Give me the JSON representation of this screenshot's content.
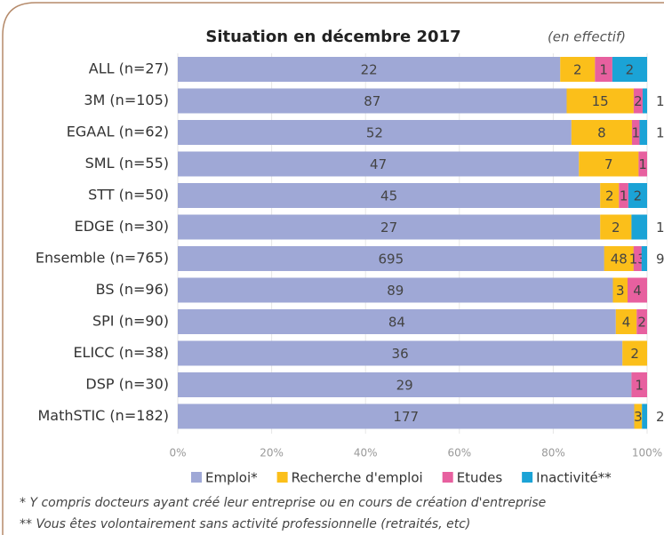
{
  "chart_data": {
    "type": "bar",
    "orientation": "horizontal",
    "stacked": "percent",
    "title": "Situation en décembre 2017",
    "subtitle": "(en effectif)",
    "categories": [
      "ALL (n=27)",
      "3M (n=105)",
      "EGAAL (n=62)",
      "SML (n=55)",
      "STT (n=50)",
      "EDGE (n=30)",
      "Ensemble (n=765)",
      "BS (n=96)",
      "SPI (n=90)",
      "ELICC (n=38)",
      "DSP (n=30)",
      "MathSTIC (n=182)"
    ],
    "series": [
      {
        "name": "Emploi*",
        "color": "#9fa8d6",
        "values": [
          22,
          87,
          52,
          47,
          45,
          27,
          695,
          89,
          84,
          36,
          29,
          177
        ]
      },
      {
        "name": "Recherche d'emploi",
        "color": "#fbbf1a",
        "values": [
          2,
          15,
          8,
          7,
          2,
          2,
          48,
          3,
          4,
          2,
          null,
          3
        ]
      },
      {
        "name": "Etudes",
        "color": "#e7609f",
        "values": [
          1,
          2,
          1,
          1,
          1,
          null,
          13,
          4,
          2,
          null,
          1,
          null
        ]
      },
      {
        "name": "Inactivité**",
        "color": "#1ba3d6",
        "values": [
          2,
          1,
          1,
          null,
          2,
          1,
          9,
          null,
          null,
          null,
          null,
          2
        ]
      }
    ],
    "xlim": [
      0,
      100
    ],
    "xticks": [
      {
        "value": 0,
        "label": "0%"
      },
      {
        "value": 20,
        "label": "20%"
      },
      {
        "value": 40,
        "label": "40%"
      },
      {
        "value": 60,
        "label": "60%"
      },
      {
        "value": 80,
        "label": "80%"
      },
      {
        "value": 100,
        "label": "100%"
      }
    ],
    "grid": true,
    "legend": "bottom",
    "notes": [
      "* Y compris docteurs ayant créé leur entreprise ou en cours de création d'entreprise",
      "** Vous êtes volontairement sans activité professionnelle (retraités, etc)"
    ]
  }
}
